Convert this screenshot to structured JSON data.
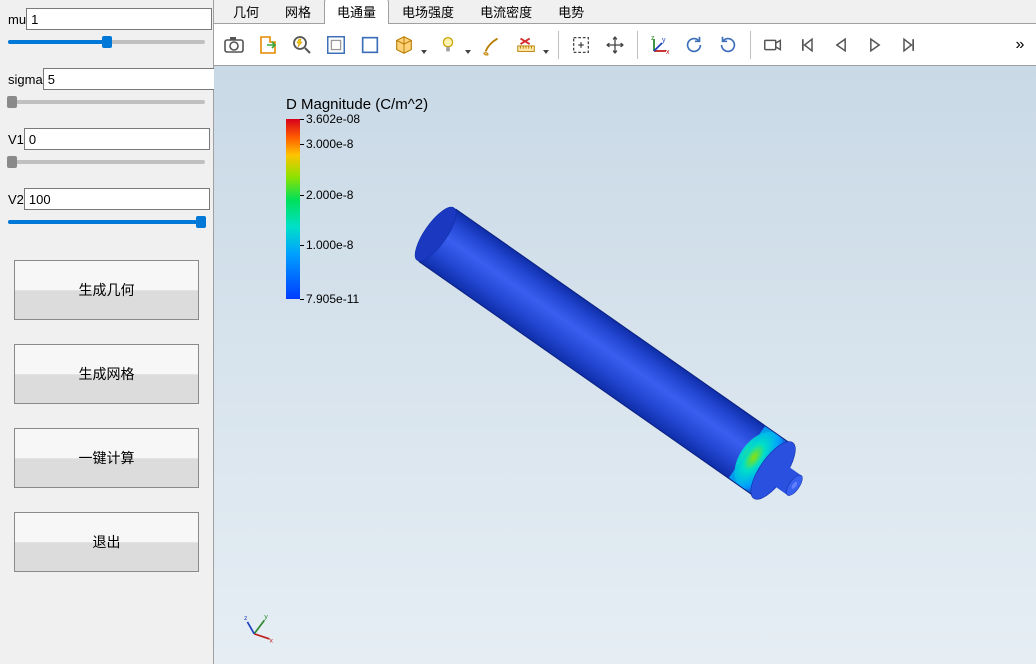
{
  "params": {
    "mu": {
      "label": "mu",
      "value": "1",
      "slider_pct": 50
    },
    "sigma": {
      "label": "sigma",
      "value": "5",
      "slider_pct": 2,
      "gray": true
    },
    "V1": {
      "label": "V1",
      "value": "0",
      "slider_pct": 2,
      "gray": true
    },
    "V2": {
      "label": "V2",
      "value": "100",
      "slider_pct": 98
    }
  },
  "buttons": {
    "gen_geom": "生成几何",
    "gen_mesh": "生成网格",
    "compute": "一键计算",
    "exit": "退出"
  },
  "tabs": {
    "items": [
      "几何",
      "网格",
      "电通量",
      "电场强度",
      "电流密度",
      "电势"
    ],
    "active_index": 2
  },
  "toolbar_icons": [
    "camera-icon",
    "export-icon",
    "zoom-lightning-icon",
    "select-box-icon",
    "box-icon",
    "cube-dd-icon",
    "bulb-dd-icon",
    "brush-icon",
    "ruler-x-dd-icon",
    "SEP",
    "selection-rect-icon",
    "move-icon",
    "SEP",
    "axes-icon",
    "rotate-ccw-icon",
    "rotate-cw-icon",
    "SEP",
    "record-icon",
    "first-frame-icon",
    "prev-frame-icon",
    "play-icon",
    "next-frame-icon"
  ],
  "legend": {
    "title": "D Magnitude (C/m^2)",
    "ticks": [
      {
        "pct": 0,
        "label": "3.602e-08"
      },
      {
        "pct": 14,
        "label": "3.000e-8"
      },
      {
        "pct": 42,
        "label": "2.000e-8"
      },
      {
        "pct": 70,
        "label": "1.000e-8"
      },
      {
        "pct": 100,
        "label": "7.905e-11"
      }
    ]
  },
  "model": {
    "body_color": "#2346d2",
    "body_shade": "#0e2ea8",
    "highlight1": "#00e0c8",
    "highlight2": "#8fe200",
    "highlight3": "#ffb000"
  },
  "triad_labels": {
    "x": "x",
    "y": "y",
    "z": "z"
  },
  "colors": {
    "accent": "#0078d7",
    "icon_blue": "#3b6db8",
    "icon_orange": "#e48a00",
    "icon_green": "#3aa53a",
    "icon_red": "#d62c2c"
  }
}
